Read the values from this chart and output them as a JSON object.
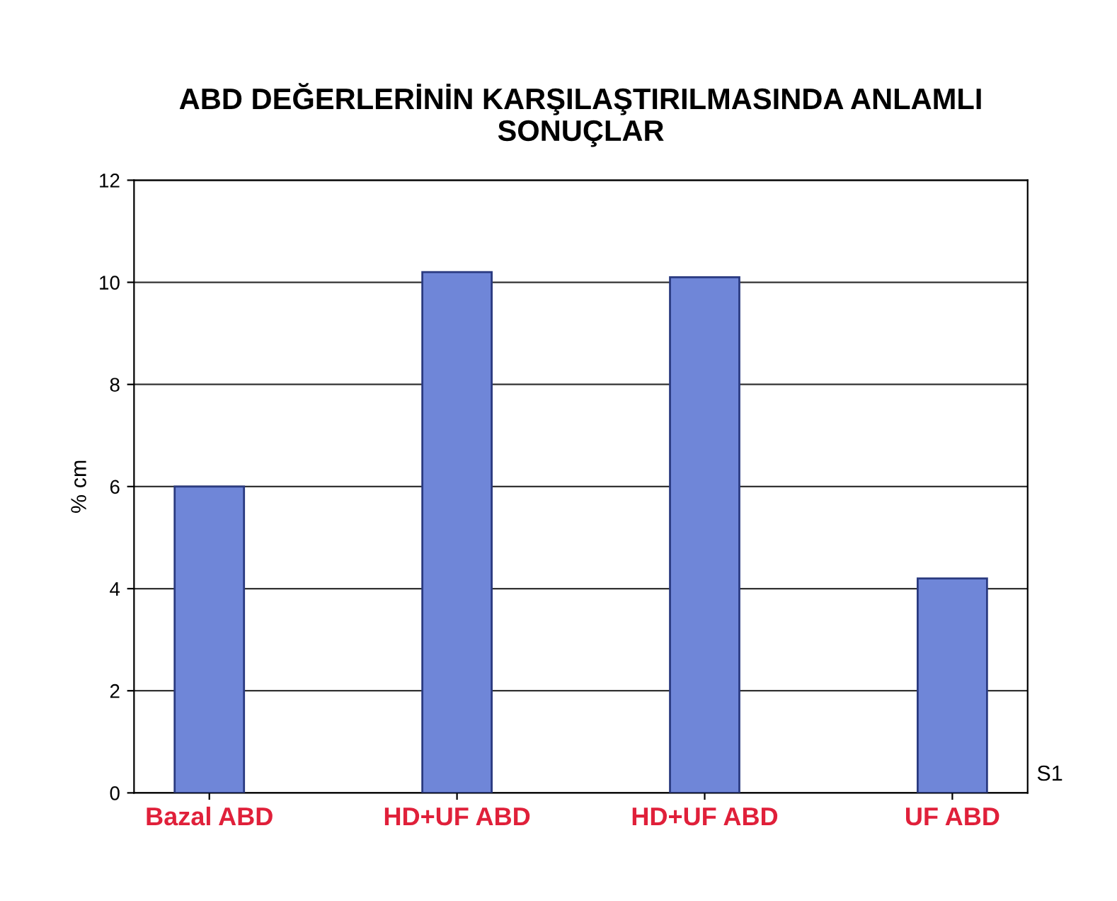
{
  "chart_data": {
    "type": "bar",
    "title": "ABD DEĞERLERİNİN KARŞILAŞTIRILMASINDA ANLAMLI\nSONUÇLAR",
    "categories": [
      "Bazal ABD",
      "HD+UF ABD",
      "HD+UF ABD",
      "UF ABD"
    ],
    "values": [
      6.0,
      10.2,
      10.1,
      4.2
    ],
    "color": "#6f86d8",
    "ylabel": "% cm",
    "annotations": [
      "S1"
    ],
    "ylim": [
      0,
      12
    ],
    "yticks": [
      0,
      2,
      4,
      6,
      8,
      10,
      12
    ],
    "grid": "y"
  }
}
